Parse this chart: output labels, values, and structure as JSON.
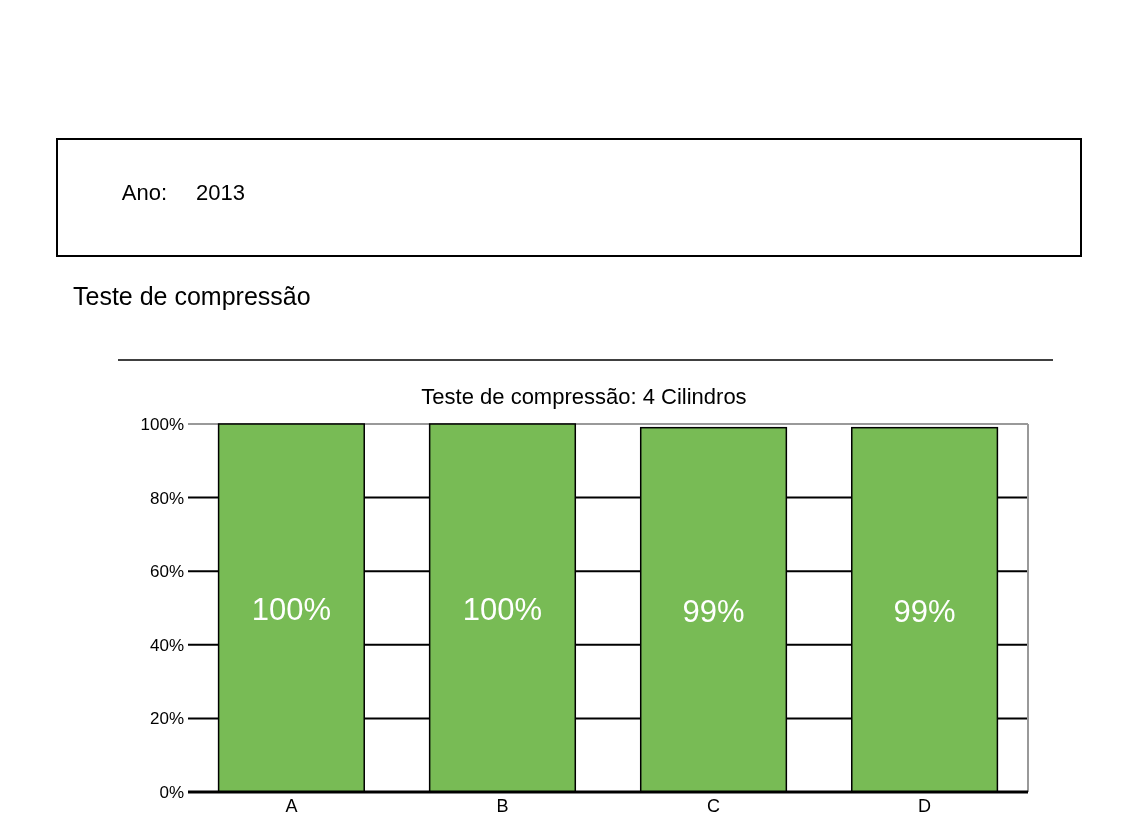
{
  "chart_data": {
    "type": "bar",
    "title": "Teste de compressão: 4 Cilindros",
    "annotations": [
      "Ano:",
      "2013",
      "Teste de compressão"
    ],
    "categories": [
      "A",
      "B",
      "C",
      "D"
    ],
    "values": [
      100,
      100,
      99,
      99
    ],
    "color": "#78bb55",
    "data_labels": true,
    "value_labels": [
      "100%",
      "100%",
      "99%",
      "99%"
    ],
    "ylim": [
      0,
      100
    ],
    "yticks": [
      {
        "value": 0,
        "label": "0%"
      },
      {
        "value": 20,
        "label": "20%"
      },
      {
        "value": 40,
        "label": "40%"
      },
      {
        "value": 60,
        "label": "60%"
      },
      {
        "value": 80,
        "label": "80%"
      },
      {
        "value": 100,
        "label": "100%"
      }
    ],
    "grid": "y"
  }
}
